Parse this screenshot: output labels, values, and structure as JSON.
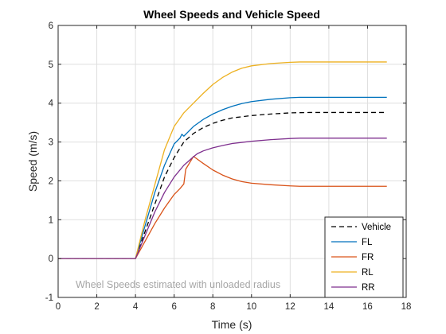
{
  "chart_data": {
    "type": "line",
    "title": "Wheel Speeds and Vehicle Speed",
    "xlabel": "Time (s)",
    "ylabel": "Speed (m/s)",
    "xlim": [
      0,
      18
    ],
    "ylim": [
      -1,
      6
    ],
    "xticks": [
      0,
      2,
      4,
      6,
      8,
      10,
      12,
      14,
      16,
      18
    ],
    "yticks": [
      -1,
      0,
      1,
      2,
      3,
      4,
      5,
      6
    ],
    "grid": true,
    "legend_location": "bottom-right",
    "annotation": "Wheel Speeds estimated with unloaded radius",
    "series": [
      {
        "name": "Vehicle",
        "color": "#000000",
        "style": "dashed",
        "points": [
          [
            0,
            0
          ],
          [
            4,
            0
          ],
          [
            4.5,
            0.7
          ],
          [
            5,
            1.4
          ],
          [
            5.5,
            2.1
          ],
          [
            6,
            2.6
          ],
          [
            6.5,
            3.0
          ],
          [
            7,
            3.22
          ],
          [
            7.5,
            3.37
          ],
          [
            8,
            3.48
          ],
          [
            8.5,
            3.56
          ],
          [
            9,
            3.62
          ],
          [
            10,
            3.68
          ],
          [
            11,
            3.72
          ],
          [
            12,
            3.75
          ],
          [
            13,
            3.76
          ],
          [
            17,
            3.76
          ]
        ]
      },
      {
        "name": "FL",
        "color": "#0072BD",
        "style": "solid",
        "points": [
          [
            0,
            0
          ],
          [
            4,
            0
          ],
          [
            4.5,
            0.85
          ],
          [
            5,
            1.7
          ],
          [
            5.5,
            2.4
          ],
          [
            6,
            2.95
          ],
          [
            6.3,
            3.1
          ],
          [
            6.4,
            3.2
          ],
          [
            6.5,
            3.15
          ],
          [
            7,
            3.4
          ],
          [
            7.5,
            3.58
          ],
          [
            8,
            3.72
          ],
          [
            8.5,
            3.83
          ],
          [
            9,
            3.92
          ],
          [
            9.5,
            3.99
          ],
          [
            10,
            4.04
          ],
          [
            11,
            4.1
          ],
          [
            12,
            4.14
          ],
          [
            12.5,
            4.15
          ],
          [
            17,
            4.15
          ]
        ]
      },
      {
        "name": "FR",
        "color": "#D95319",
        "style": "solid",
        "points": [
          [
            0,
            0
          ],
          [
            4,
            0
          ],
          [
            4.5,
            0.45
          ],
          [
            5,
            0.9
          ],
          [
            5.5,
            1.3
          ],
          [
            6,
            1.65
          ],
          [
            6.3,
            1.8
          ],
          [
            6.5,
            1.92
          ],
          [
            6.6,
            2.3
          ],
          [
            7,
            2.63
          ],
          [
            7.5,
            2.45
          ],
          [
            8,
            2.28
          ],
          [
            8.5,
            2.15
          ],
          [
            9,
            2.05
          ],
          [
            9.5,
            1.98
          ],
          [
            10,
            1.94
          ],
          [
            11,
            1.9
          ],
          [
            12,
            1.87
          ],
          [
            12.5,
            1.86
          ],
          [
            17,
            1.86
          ]
        ]
      },
      {
        "name": "RL",
        "color": "#EDB120",
        "style": "solid",
        "points": [
          [
            0,
            0
          ],
          [
            4,
            0
          ],
          [
            4.5,
            1.0
          ],
          [
            5,
            1.9
          ],
          [
            5.5,
            2.8
          ],
          [
            6,
            3.4
          ],
          [
            6.5,
            3.75
          ],
          [
            7,
            4.0
          ],
          [
            7.5,
            4.25
          ],
          [
            8,
            4.48
          ],
          [
            8.5,
            4.66
          ],
          [
            9,
            4.8
          ],
          [
            9.5,
            4.9
          ],
          [
            10,
            4.96
          ],
          [
            11,
            5.02
          ],
          [
            12,
            5.05
          ],
          [
            12.5,
            5.06
          ],
          [
            17,
            5.06
          ]
        ]
      },
      {
        "name": "RR",
        "color": "#7E2F8E",
        "style": "solid",
        "points": [
          [
            0,
            0
          ],
          [
            4,
            0
          ],
          [
            4.5,
            0.6
          ],
          [
            5,
            1.2
          ],
          [
            5.5,
            1.7
          ],
          [
            6,
            2.1
          ],
          [
            6.5,
            2.4
          ],
          [
            7,
            2.62
          ],
          [
            7.2,
            2.7
          ],
          [
            7.5,
            2.77
          ],
          [
            8,
            2.85
          ],
          [
            8.5,
            2.91
          ],
          [
            9,
            2.96
          ],
          [
            9.5,
            2.99
          ],
          [
            10,
            3.02
          ],
          [
            11,
            3.06
          ],
          [
            12,
            3.09
          ],
          [
            12.5,
            3.1
          ],
          [
            17,
            3.1
          ]
        ]
      }
    ]
  }
}
